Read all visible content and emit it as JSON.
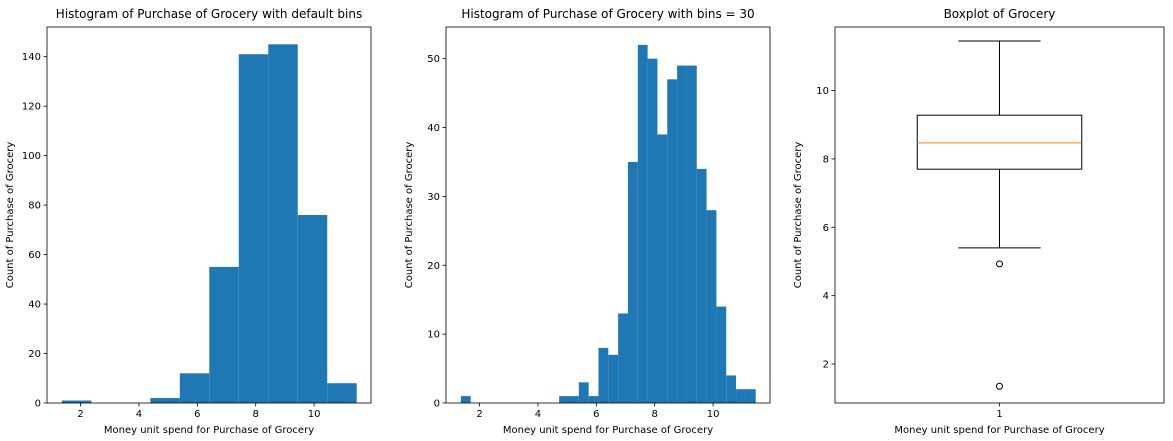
{
  "chart_data": [
    {
      "type": "bar",
      "title": "Histogram of Purchase of Grocery with default bins",
      "xlabel": "Money unit spend for Purchase of Grocery",
      "ylabel": "Count of Purchase of Grocery",
      "xlim": [
        0.85,
        11.95
      ],
      "ylim": [
        0,
        152
      ],
      "x_ticks": [
        2,
        4,
        6,
        8,
        10
      ],
      "y_ticks": [
        0,
        20,
        40,
        60,
        80,
        100,
        120,
        140
      ],
      "bar_color": "#1f77b4",
      "bins": [
        {
          "x0": 1.36,
          "x1": 2.37,
          "count": 1
        },
        {
          "x0": 2.37,
          "x1": 3.38,
          "count": 0
        },
        {
          "x0": 3.38,
          "x1": 4.39,
          "count": 0
        },
        {
          "x0": 4.39,
          "x1": 5.4,
          "count": 2
        },
        {
          "x0": 5.4,
          "x1": 6.41,
          "count": 12
        },
        {
          "x0": 6.41,
          "x1": 7.42,
          "count": 55
        },
        {
          "x0": 7.42,
          "x1": 8.43,
          "count": 141
        },
        {
          "x0": 8.43,
          "x1": 9.44,
          "count": 145
        },
        {
          "x0": 9.44,
          "x1": 10.45,
          "count": 76
        },
        {
          "x0": 10.45,
          "x1": 11.46,
          "count": 8
        }
      ]
    },
    {
      "type": "bar",
      "title": "Histogram of Purchase of Grocery with bins = 30",
      "xlabel": "Money unit spend for Purchase of Grocery",
      "ylabel": "Count of Purchase of Grocery",
      "xlim": [
        0.85,
        11.95
      ],
      "ylim": [
        0,
        54.6
      ],
      "x_ticks": [
        2,
        4,
        6,
        8,
        10
      ],
      "y_ticks": [
        0,
        10,
        20,
        30,
        40,
        50
      ],
      "bar_color": "#1f77b4",
      "bin_start": 1.36,
      "bin_width": 0.3367,
      "counts": [
        1,
        0,
        0,
        0,
        0,
        0,
        0,
        0,
        0,
        0,
        1,
        1,
        3,
        1,
        8,
        7,
        13,
        35,
        52,
        50,
        39,
        47,
        49,
        49,
        34,
        28,
        14,
        4,
        2,
        2
      ]
    },
    {
      "type": "boxplot",
      "title": "Boxplot of Grocery",
      "xlabel": "Money unit spend for Purchase of Grocery",
      "ylabel": "Count of Purchase of Grocery",
      "xlim": [
        0.5,
        1.5
      ],
      "ylim": [
        0.86,
        11.86
      ],
      "x_ticks": [
        1
      ],
      "y_ticks": [
        2,
        4,
        6,
        8,
        10
      ],
      "box": {
        "position": 1,
        "q1": 7.7,
        "median": 8.47,
        "q3": 9.28,
        "whisker_low": 5.4,
        "whisker_high": 11.45,
        "outliers": [
          4.93,
          1.35
        ]
      },
      "median_color": "#ff7f0e"
    }
  ]
}
